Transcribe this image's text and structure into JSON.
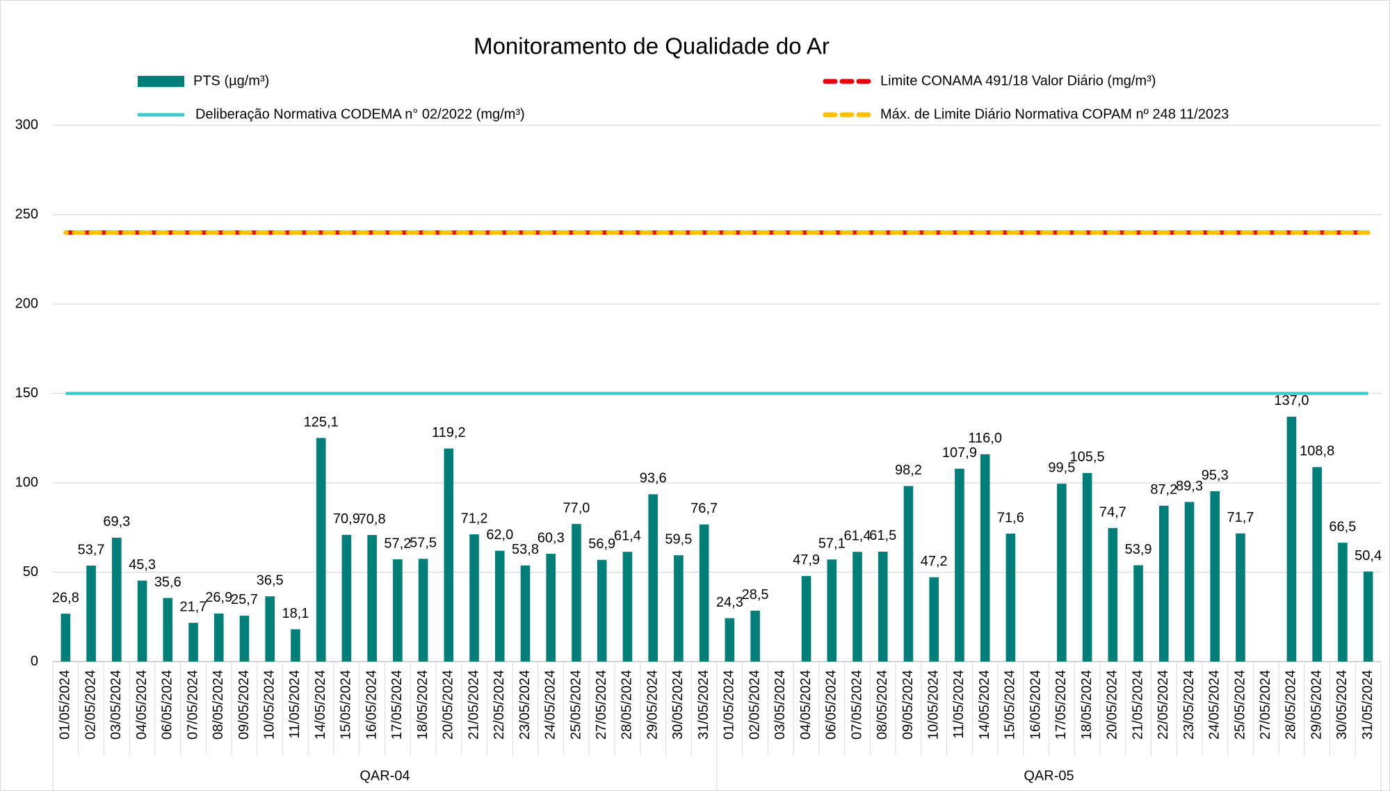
{
  "chart_data": {
    "type": "bar",
    "title": "Monitoramento de Qualidade do Ar",
    "groups": [
      {
        "name": "QAR-04",
        "categories": [
          "01/05/2024",
          "02/05/2024",
          "03/05/2024",
          "04/05/2024",
          "06/05/2024",
          "07/05/2024",
          "08/05/2024",
          "09/05/2024",
          "10/05/2024",
          "11/05/2024",
          "14/05/2024",
          "15/05/2024",
          "16/05/2024",
          "17/05/2024",
          "18/05/2024",
          "20/05/2024",
          "21/05/2024",
          "22/05/2024",
          "23/05/2024",
          "24/05/2024",
          "25/05/2024",
          "27/05/2024",
          "28/05/2024",
          "29/05/2024",
          "30/05/2024",
          "31/05/2024"
        ]
      },
      {
        "name": "QAR-05",
        "categories": [
          "01/05/2024",
          "02/05/2024",
          "03/05/2024",
          "04/05/2024",
          "06/05/2024",
          "07/05/2024",
          "08/05/2024",
          "09/05/2024",
          "10/05/2024",
          "11/05/2024",
          "14/05/2024",
          "15/05/2024",
          "16/05/2024",
          "17/05/2024",
          "18/05/2024",
          "20/05/2024",
          "21/05/2024",
          "22/05/2024",
          "23/05/2024",
          "24/05/2024",
          "25/05/2024",
          "27/05/2024",
          "28/05/2024",
          "29/05/2024",
          "30/05/2024",
          "31/05/2024"
        ]
      }
    ],
    "series": [
      {
        "name": "PTS (µg/m³)",
        "color": "#007f78",
        "values": [
          26.8,
          53.7,
          69.3,
          45.3,
          35.6,
          21.7,
          26.9,
          25.7,
          36.5,
          18.1,
          125.1,
          70.9,
          70.8,
          57.2,
          57.5,
          119.2,
          71.2,
          62.0,
          53.8,
          60.3,
          77.0,
          56.9,
          61.4,
          93.6,
          59.5,
          76.7,
          24.3,
          28.5,
          null,
          47.9,
          57.1,
          61.4,
          61.5,
          98.2,
          47.2,
          107.9,
          116.0,
          71.6,
          null,
          99.5,
          105.5,
          74.7,
          53.9,
          87.2,
          89.3,
          95.3,
          71.7,
          null,
          137.0,
          108.8,
          66.5,
          50.4
        ],
        "value_labels": [
          "26,8",
          "53,7",
          "69,3",
          "45,3",
          "35,6",
          "21,7",
          "26,9",
          "25,7",
          "36,5",
          "18,1",
          "125,1",
          "70,9",
          "70,8",
          "57,2",
          "57,5",
          "119,2",
          "71,2",
          "62,0",
          "53,8",
          "60,3",
          "77,0",
          "56,9",
          "61,4",
          "93,6",
          "59,5",
          "76,7",
          "24,3",
          "28,5",
          null,
          "47,9",
          "57,1",
          "61,4",
          "61,5",
          "98,2",
          "47,2",
          "107,9",
          "116,0",
          "71,6",
          null,
          "99,5",
          "105,5",
          "74,7",
          "53,9",
          "87,2",
          "89,3",
          "95,3",
          "71,7",
          null,
          "137,0",
          "108,8",
          "66,5",
          "50,4"
        ]
      }
    ],
    "reference_lines": [
      {
        "name": "Limite CONAMA 491/18  Valor Diário (mg/m³)",
        "color": "#e8000b",
        "value": 240,
        "dashed": true
      },
      {
        "name": "Máx. de Limite Diário Normativa COPAM nº 248 11/2023",
        "color": "#ffc000",
        "value": 240,
        "dashed": true
      },
      {
        "name": "Deliberação Normativa CODEMA n° 02/2022 (mg/m³)",
        "color": "#3ecbcb",
        "value": 150,
        "dashed": false
      }
    ],
    "ylim": [
      0,
      300
    ],
    "yticks": [
      0,
      50,
      100,
      150,
      200,
      250,
      300
    ],
    "grid": true
  }
}
